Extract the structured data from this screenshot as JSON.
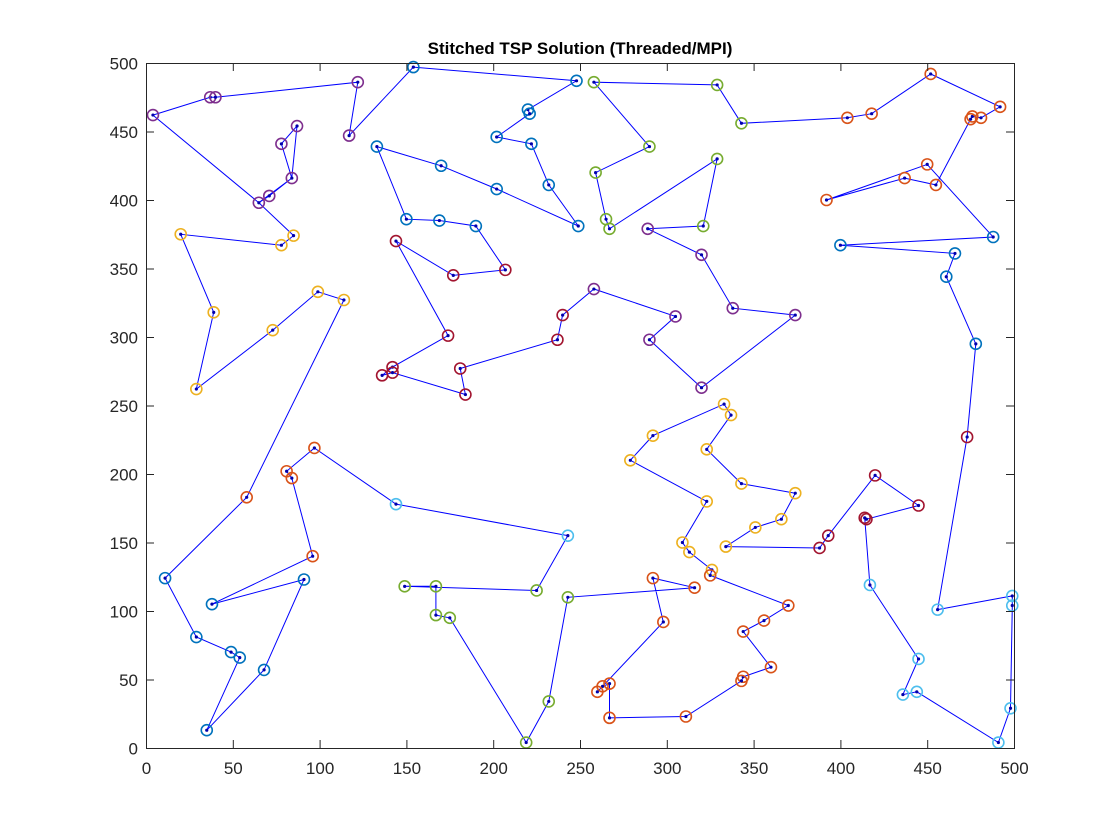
{
  "chart_data": {
    "type": "line",
    "title": "Stitched TSP Solution (Threaded/MPI)",
    "xlabel": "",
    "ylabel": "",
    "xlim": [
      0,
      500
    ],
    "ylim": [
      0,
      500
    ],
    "xticks": [
      0,
      50,
      100,
      150,
      200,
      250,
      300,
      350,
      400,
      450,
      500
    ],
    "yticks": [
      0,
      50,
      100,
      150,
      200,
      250,
      300,
      350,
      400,
      450,
      500
    ],
    "grid": false,
    "box": true,
    "route_color": "#0000ff",
    "city_dot_color": "#0000aa",
    "cluster_colors": {
      "purple": "#7e2f8e",
      "orange": "#edb120",
      "red": "#d95319",
      "darkred": "#a2142f",
      "blue": "#0072bd",
      "green": "#77ac30",
      "cyan": "#4dbeee"
    },
    "route": [
      [
        4,
        462,
        "purple"
      ],
      [
        37,
        475,
        "purple"
      ],
      [
        40,
        475,
        "purple"
      ],
      [
        122,
        486,
        "purple"
      ],
      [
        117,
        447,
        "purple"
      ],
      [
        154,
        497,
        "blue"
      ],
      [
        248,
        487,
        "blue"
      ],
      [
        220,
        466,
        "blue"
      ],
      [
        221,
        463,
        "blue"
      ],
      [
        202,
        446,
        "blue"
      ],
      [
        222,
        441,
        "blue"
      ],
      [
        232,
        411,
        "blue"
      ],
      [
        249,
        381,
        "blue"
      ],
      [
        202,
        408,
        "blue"
      ],
      [
        170,
        425,
        "blue"
      ],
      [
        133,
        439,
        "blue"
      ],
      [
        150,
        386,
        "blue"
      ],
      [
        169,
        385,
        "blue"
      ],
      [
        190,
        381,
        "blue"
      ],
      [
        207,
        349,
        "darkred"
      ],
      [
        177,
        345,
        "darkred"
      ],
      [
        144,
        370,
        "darkred"
      ],
      [
        174,
        301,
        "darkred"
      ],
      [
        142,
        278,
        "darkred"
      ],
      [
        136,
        272,
        "darkred"
      ],
      [
        142,
        274,
        "darkred"
      ],
      [
        184,
        258,
        "darkred"
      ],
      [
        181,
        277,
        "darkred"
      ],
      [
        237,
        298,
        "darkred"
      ],
      [
        240,
        316,
        "darkred"
      ],
      [
        258,
        335,
        "purple"
      ],
      [
        305,
        315,
        "purple"
      ],
      [
        290,
        298,
        "purple"
      ],
      [
        320,
        263,
        "purple"
      ],
      [
        374,
        316,
        "purple"
      ],
      [
        338,
        321,
        "purple"
      ],
      [
        320,
        360,
        "purple"
      ],
      [
        289,
        379,
        "purple"
      ],
      [
        321,
        381,
        "green"
      ],
      [
        329,
        430,
        "green"
      ],
      [
        267,
        379,
        "green"
      ],
      [
        265,
        386,
        "green"
      ],
      [
        259,
        420,
        "green"
      ],
      [
        290,
        439,
        "green"
      ],
      [
        258,
        486,
        "green"
      ],
      [
        329,
        484,
        "green"
      ],
      [
        343,
        456,
        "green"
      ],
      [
        404,
        460,
        "red"
      ],
      [
        418,
        463,
        "red"
      ],
      [
        452,
        492,
        "red"
      ],
      [
        492,
        468,
        "red"
      ],
      [
        481,
        460,
        "red"
      ],
      [
        476,
        461,
        "red"
      ],
      [
        475,
        459,
        "red"
      ],
      [
        455,
        411,
        "red"
      ],
      [
        437,
        416,
        "red"
      ],
      [
        392,
        400,
        "red"
      ],
      [
        450,
        426,
        "red"
      ],
      [
        488,
        373,
        "blue"
      ],
      [
        400,
        367,
        "blue"
      ],
      [
        466,
        361,
        "blue"
      ],
      [
        461,
        344,
        "blue"
      ],
      [
        478,
        295,
        "blue"
      ],
      [
        473,
        227,
        "darkred"
      ],
      [
        456,
        101,
        "cyan"
      ],
      [
        499,
        111,
        "cyan"
      ],
      [
        499,
        104,
        "cyan"
      ],
      [
        498,
        29,
        "cyan"
      ],
      [
        491,
        4,
        "cyan"
      ],
      [
        444,
        41,
        "cyan"
      ],
      [
        436,
        39,
        "cyan"
      ],
      [
        445,
        65,
        "cyan"
      ],
      [
        417,
        119,
        "cyan"
      ],
      [
        414,
        168,
        "darkred"
      ],
      [
        415,
        167,
        "darkred"
      ],
      [
        445,
        177,
        "darkred"
      ],
      [
        420,
        199,
        "darkred"
      ],
      [
        393,
        155,
        "darkred"
      ],
      [
        388,
        146,
        "darkred"
      ],
      [
        334,
        147,
        "orange"
      ],
      [
        351,
        161,
        "orange"
      ],
      [
        366,
        167,
        "orange"
      ],
      [
        374,
        186,
        "orange"
      ],
      [
        343,
        193,
        "orange"
      ],
      [
        323,
        218,
        "orange"
      ],
      [
        337,
        243,
        "orange"
      ],
      [
        333,
        251,
        "orange"
      ],
      [
        292,
        228,
        "orange"
      ],
      [
        279,
        210,
        "orange"
      ],
      [
        323,
        180,
        "orange"
      ],
      [
        309,
        150,
        "orange"
      ],
      [
        313,
        143,
        "orange"
      ],
      [
        326,
        130,
        "orange"
      ],
      [
        325,
        126,
        "red"
      ],
      [
        370,
        104,
        "red"
      ],
      [
        356,
        93,
        "red"
      ],
      [
        344,
        85,
        "red"
      ],
      [
        360,
        59,
        "red"
      ],
      [
        344,
        52,
        "red"
      ],
      [
        343,
        49,
        "red"
      ],
      [
        311,
        23,
        "red"
      ],
      [
        267,
        22,
        "red"
      ],
      [
        267,
        47,
        "red"
      ],
      [
        263,
        45,
        "red"
      ],
      [
        260,
        41,
        "red"
      ],
      [
        298,
        92,
        "red"
      ],
      [
        292,
        124,
        "red"
      ],
      [
        316,
        117,
        "red"
      ],
      [
        243,
        110,
        "green"
      ],
      [
        232,
        34,
        "green"
      ],
      [
        219,
        4,
        "green"
      ],
      [
        175,
        95,
        "green"
      ],
      [
        167,
        97,
        "green"
      ],
      [
        167,
        118,
        "green"
      ],
      [
        149,
        118,
        "green"
      ],
      [
        225,
        115,
        "green"
      ],
      [
        243,
        155,
        "cyan"
      ],
      [
        144,
        178,
        "cyan"
      ],
      [
        97,
        219,
        "red"
      ],
      [
        81,
        202,
        "red"
      ],
      [
        84,
        197,
        "red"
      ],
      [
        96,
        140,
        "red"
      ],
      [
        38,
        105,
        "blue"
      ],
      [
        91,
        123,
        "blue"
      ],
      [
        68,
        57,
        "blue"
      ],
      [
        35,
        13,
        "blue"
      ],
      [
        54,
        66,
        "blue"
      ],
      [
        49,
        70,
        "blue"
      ],
      [
        29,
        81,
        "blue"
      ],
      [
        11,
        124,
        "blue"
      ],
      [
        58,
        183,
        "red"
      ],
      [
        114,
        327,
        "orange"
      ],
      [
        99,
        333,
        "orange"
      ],
      [
        73,
        305,
        "orange"
      ],
      [
        29,
        262,
        "orange"
      ],
      [
        39,
        318,
        "orange"
      ],
      [
        20,
        375,
        "orange"
      ],
      [
        78,
        367,
        "orange"
      ],
      [
        85,
        374,
        "orange"
      ],
      [
        65,
        398,
        "purple"
      ],
      [
        71,
        403,
        "purple"
      ],
      [
        84,
        416,
        "purple"
      ],
      [
        78,
        441,
        "purple"
      ],
      [
        87,
        454,
        "purple"
      ],
      [
        84,
        416,
        "purple"
      ],
      [
        65,
        398,
        "purple"
      ],
      [
        4,
        462,
        "purple"
      ]
    ]
  }
}
